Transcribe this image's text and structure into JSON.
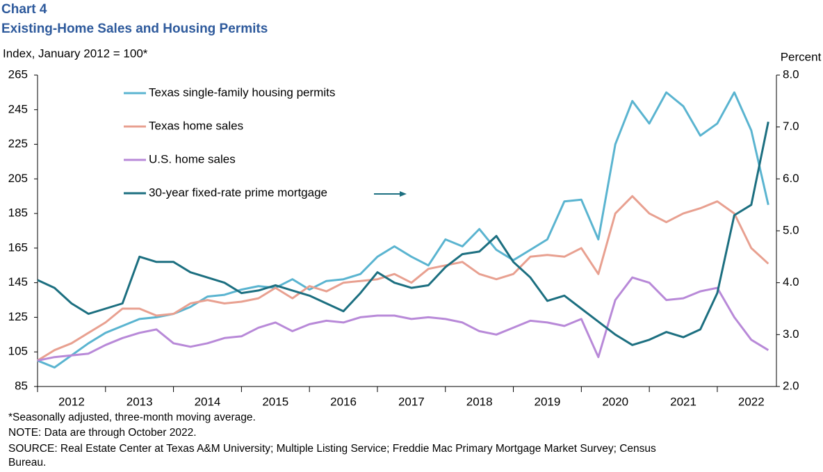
{
  "chart_data": {
    "type": "line",
    "title": "Chart 4",
    "subtitle": "Existing-Home Sales and Housing Permits",
    "y_label": "Index, January 2012 = 100*",
    "y2_label": "Percent",
    "notes": [
      "*Seasonally adjusted, three-month moving average.",
      "NOTE: Data are through October 2022.",
      "SOURCE: Real Estate Center at Texas A&M University; Multiple Listing Service; Freddie Mac Primary Mortgage Market Survey; Census",
      "Bureau."
    ],
    "x": [
      2012,
      2012.25,
      2012.5,
      2012.75,
      2013,
      2013.25,
      2013.5,
      2013.75,
      2014,
      2014.25,
      2014.5,
      2014.75,
      2015,
      2015.25,
      2015.5,
      2015.75,
      2016,
      2016.25,
      2016.5,
      2016.75,
      2017,
      2017.25,
      2017.5,
      2017.75,
      2018,
      2018.25,
      2018.5,
      2018.75,
      2019,
      2019.25,
      2019.5,
      2019.75,
      2020,
      2020.25,
      2020.5,
      2020.75,
      2021,
      2021.25,
      2021.5,
      2021.75,
      2022,
      2022.25,
      2022.5,
      2022.75
    ],
    "xlim": [
      2012,
      2022.87
    ],
    "xticks": [
      {
        "value": 2012.5,
        "label": "2012"
      },
      {
        "value": 2013.5,
        "label": "2013"
      },
      {
        "value": 2014.5,
        "label": "2014"
      },
      {
        "value": 2015.5,
        "label": "2015"
      },
      {
        "value": 2016.5,
        "label": "2016"
      },
      {
        "value": 2017.5,
        "label": "2017"
      },
      {
        "value": 2018.5,
        "label": "2018"
      },
      {
        "value": 2019.5,
        "label": "2019"
      },
      {
        "value": 2020.5,
        "label": "2020"
      },
      {
        "value": 2021.5,
        "label": "2021"
      },
      {
        "value": 2022.5,
        "label": "2022"
      }
    ],
    "ylim": [
      85,
      265
    ],
    "yticks": [
      85,
      105,
      125,
      145,
      165,
      185,
      205,
      225,
      245,
      265
    ],
    "y2lim": [
      2,
      8
    ],
    "y2ticks": [
      {
        "value": 2,
        "label": "2.0"
      },
      {
        "value": 3,
        "label": "3.0"
      },
      {
        "value": 4,
        "label": "4.0"
      },
      {
        "value": 5,
        "label": "5.0"
      },
      {
        "value": 6,
        "label": "6.0"
      },
      {
        "value": 7,
        "label": "7.0"
      },
      {
        "value": 8,
        "label": "8.0"
      }
    ],
    "series": [
      {
        "name": "Texas single-family housing permits",
        "color": "#5ab4d0",
        "values": [
          100,
          96,
          103,
          110,
          116,
          120,
          124,
          125,
          127,
          131,
          137,
          138,
          141,
          143,
          142,
          147,
          141,
          146,
          147,
          150,
          160,
          166,
          160,
          155,
          170,
          166,
          176,
          164,
          158,
          164,
          170,
          192,
          193,
          170,
          225,
          250,
          237,
          255,
          247,
          230,
          237,
          255,
          233,
          190
        ]
      },
      {
        "name": "Texas home sales",
        "color": "#e8a090",
        "values": [
          100,
          106,
          110,
          116,
          122,
          130,
          130,
          126,
          127,
          133,
          135,
          133,
          134,
          136,
          142,
          136,
          143,
          140,
          145,
          146,
          147,
          150,
          145,
          153,
          155,
          157,
          150,
          147,
          150,
          160,
          161,
          160,
          165,
          150,
          185,
          195,
          185,
          180,
          185,
          188,
          192,
          185,
          165,
          156
        ]
      },
      {
        "name": "U.S. home sales",
        "color": "#b889d8",
        "values": [
          100,
          102,
          103,
          104,
          109,
          113,
          116,
          118,
          110,
          108,
          110,
          113,
          114,
          119,
          122,
          117,
          121,
          123,
          122,
          125,
          126,
          126,
          124,
          125,
          124,
          122,
          117,
          115,
          119,
          123,
          122,
          120,
          124,
          102,
          135,
          148,
          145,
          135,
          136,
          140,
          142,
          125,
          112,
          106
        ]
      },
      {
        "name": "30-year fixed-rate prime mortgage",
        "color": "#1c6f80",
        "axis": "y2",
        "values": [
          4.05,
          3.9,
          3.6,
          3.4,
          3.5,
          3.6,
          4.5,
          4.4,
          4.4,
          4.2,
          4.1,
          4.0,
          3.8,
          3.85,
          3.95,
          3.85,
          3.75,
          3.6,
          3.45,
          3.8,
          4.2,
          4.0,
          3.9,
          3.95,
          4.3,
          4.55,
          4.6,
          4.9,
          4.4,
          4.1,
          3.65,
          3.75,
          3.5,
          3.25,
          3.0,
          2.8,
          2.9,
          3.05,
          2.95,
          3.1,
          3.8,
          5.3,
          5.5,
          7.1
        ]
      }
    ]
  }
}
